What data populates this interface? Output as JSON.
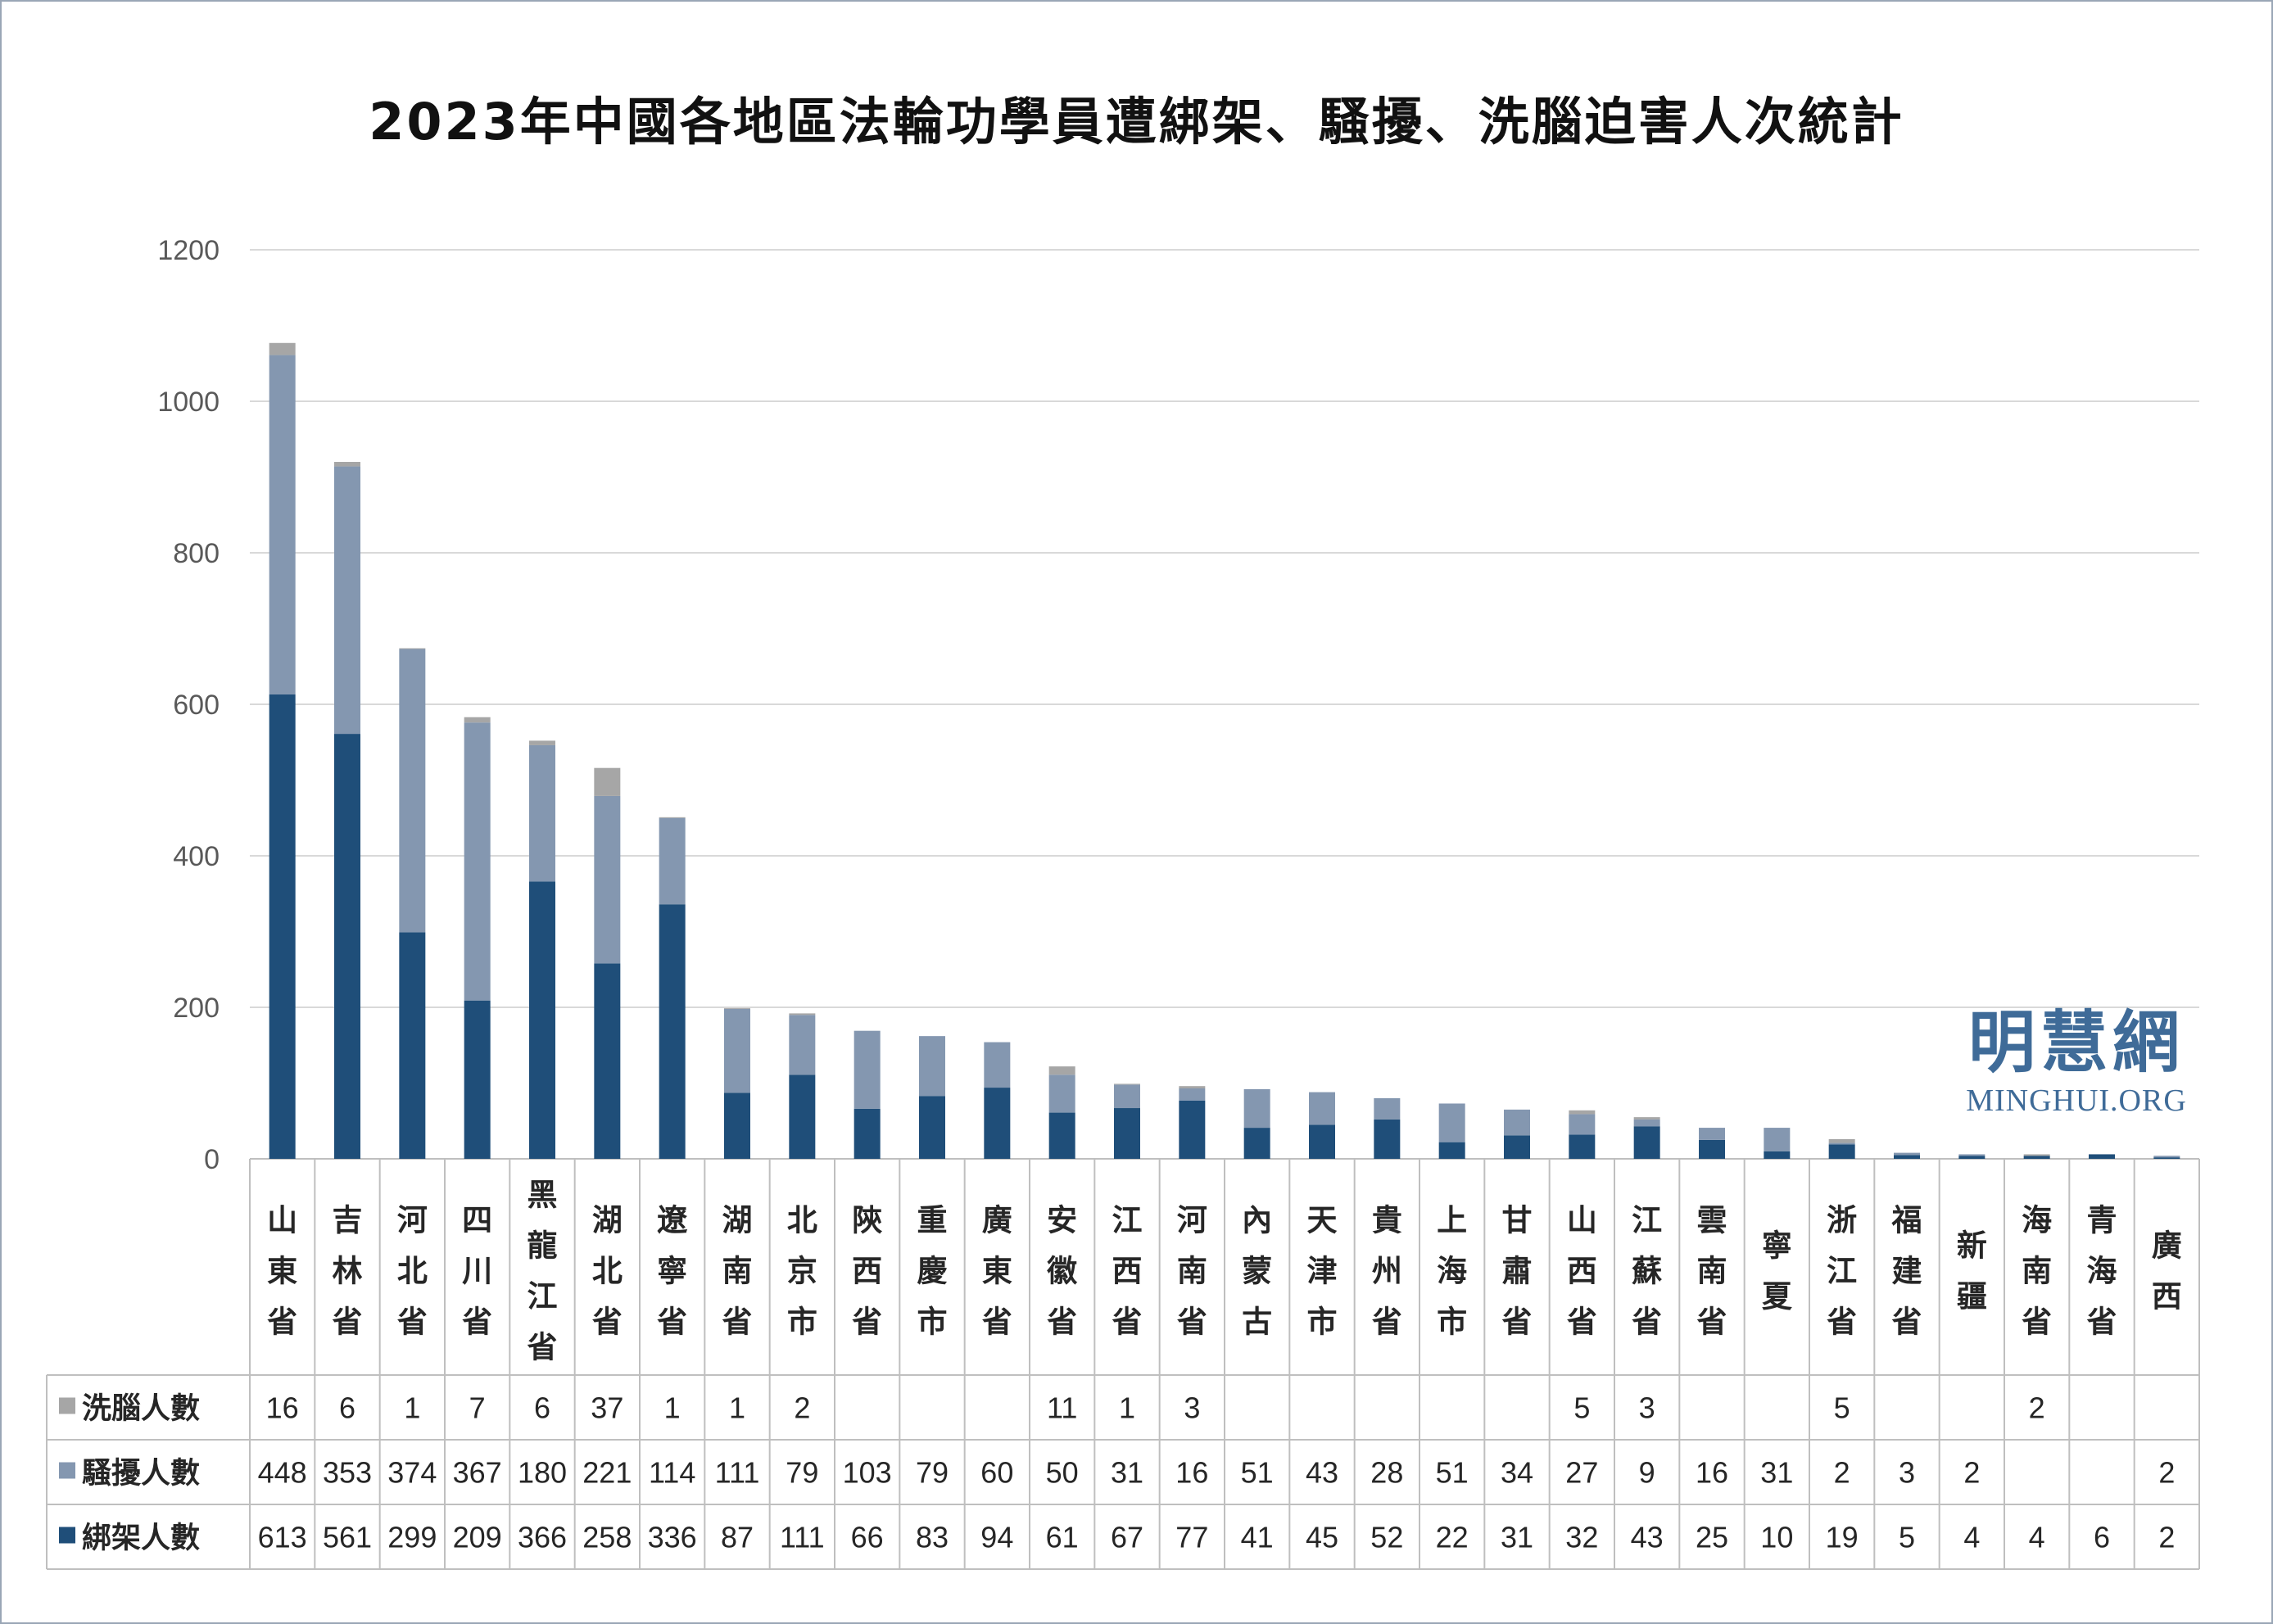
{
  "chart_data": {
    "type": "bar",
    "stacked": true,
    "title": "2023年中國各地區法輪功學員遭綁架、騷擾、洗腦迫害人次統計",
    "ylim": [
      0,
      1200
    ],
    "yticks": [
      0,
      200,
      400,
      600,
      800,
      1000,
      1200
    ],
    "grid": true,
    "legend": "table-left",
    "categories": [
      "山東省",
      "吉林省",
      "河北省",
      "四川省",
      "黑龍江省",
      "湖北省",
      "遼寧省",
      "湖南省",
      "北京市",
      "陝西省",
      "重慶市",
      "廣東省",
      "安徽省",
      "江西省",
      "河南省",
      "內蒙古",
      "天津市",
      "貴州省",
      "上海市",
      "甘肅省",
      "山西省",
      "江蘇省",
      "雲南省",
      "寧夏",
      "浙江省",
      "福建省",
      "新疆",
      "海南省",
      "青海省",
      "廣西"
    ],
    "series": [
      {
        "name": "洗腦人數",
        "color": "#a6a6a6",
        "values": [
          16,
          6,
          1,
          7,
          6,
          37,
          1,
          1,
          2,
          null,
          null,
          null,
          11,
          1,
          3,
          null,
          null,
          null,
          null,
          null,
          5,
          3,
          null,
          null,
          5,
          null,
          null,
          2,
          null,
          null
        ]
      },
      {
        "name": "騷擾人數",
        "color": "#8497b0",
        "values": [
          448,
          353,
          374,
          367,
          180,
          221,
          114,
          111,
          79,
          103,
          79,
          60,
          50,
          31,
          16,
          51,
          43,
          28,
          51,
          34,
          27,
          9,
          16,
          31,
          2,
          3,
          2,
          null,
          null,
          2
        ]
      },
      {
        "name": "綁架人數",
        "color": "#1f4e79",
        "values": [
          613,
          561,
          299,
          209,
          366,
          258,
          336,
          87,
          111,
          66,
          83,
          94,
          61,
          67,
          77,
          41,
          45,
          52,
          22,
          31,
          32,
          43,
          25,
          10,
          19,
          5,
          4,
          4,
          6,
          2
        ]
      }
    ]
  },
  "watermark": {
    "cn": "明慧網",
    "en": "MINGHUI.ORG"
  }
}
